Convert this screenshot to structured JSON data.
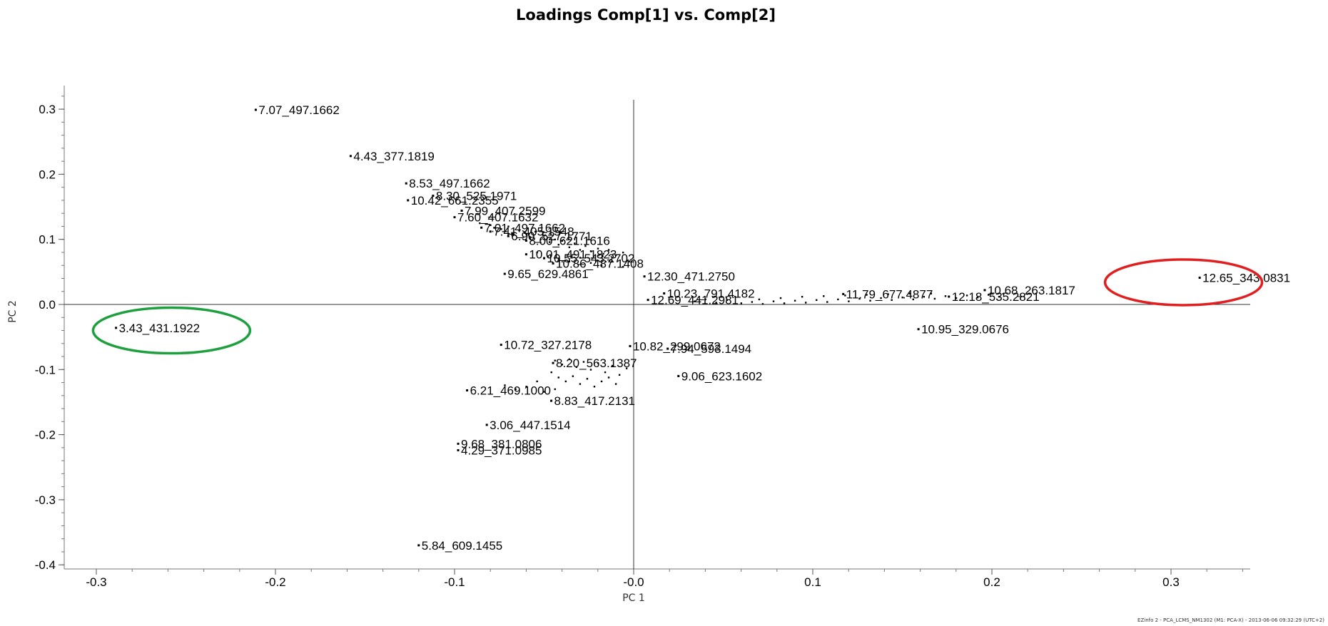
{
  "chart_data": {
    "type": "scatter",
    "title": "Loadings Comp[1] vs. Comp[2]",
    "xlabel": "PC 1",
    "ylabel": "PC 2",
    "xlim": [
      -0.32,
      0.35
    ],
    "ylim": [
      -0.4,
      0.32
    ],
    "xticks": [
      "-0.3",
      "-0.2",
      "-0.1",
      "-0.0",
      "0.1",
      "0.2",
      "0.3"
    ],
    "xtick_values": [
      -0.3,
      -0.2,
      -0.1,
      0.0,
      0.1,
      0.2,
      0.3
    ],
    "yticks": [
      "0.3",
      "0.2",
      "0.1",
      "0.0",
      "-0.1",
      "-0.2",
      "-0.3",
      "-0.4"
    ],
    "ytick_values": [
      0.3,
      0.2,
      0.1,
      0.0,
      -0.1,
      -0.2,
      -0.3,
      -0.4
    ],
    "grid": false,
    "points": [
      {
        "label": "7.07_497.1662",
        "x": -0.211,
        "y": 0.299
      },
      {
        "label": "4.43_377.1819",
        "x": -0.158,
        "y": 0.228
      },
      {
        "label": "8.53_497.1662",
        "x": -0.127,
        "y": 0.186
      },
      {
        "label": "8.30_525.1971",
        "x": -0.112,
        "y": 0.167
      },
      {
        "label": "10.42_661.2355",
        "x": -0.126,
        "y": 0.16
      },
      {
        "label": "7.99_407.2599",
        "x": -0.096,
        "y": 0.144
      },
      {
        "label": "7.60_407.1632",
        "x": -0.1,
        "y": 0.134
      },
      {
        "label": "7.01_497.1662",
        "x": -0.085,
        "y": 0.118
      },
      {
        "label": "7.41_405.1548",
        "x": -0.08,
        "y": 0.112
      },
      {
        "label": "6.90_527.1771",
        "x": -0.07,
        "y": 0.105
      },
      {
        "label": "8.00_621.1616",
        "x": -0.06,
        "y": 0.098
      },
      {
        "label": "10.01_491.1823",
        "x": -0.06,
        "y": 0.077
      },
      {
        "label": "10.55_543.2702",
        "x": -0.05,
        "y": 0.071
      },
      {
        "label": "10.86_487.1408",
        "x": -0.045,
        "y": 0.063
      },
      {
        "label": "9.65_629.4861",
        "x": -0.072,
        "y": 0.047
      },
      {
        "label": "12.30_471.2750",
        "x": 0.006,
        "y": 0.043
      },
      {
        "label": "10.23_791.4182",
        "x": 0.017,
        "y": 0.017
      },
      {
        "label": "12.69_441.2981",
        "x": 0.008,
        "y": 0.007
      },
      {
        "label": "11.79_677.4877",
        "x": 0.117,
        "y": 0.016
      },
      {
        "label": "10.68_263.1817",
        "x": 0.196,
        "y": 0.022
      },
      {
        "label": "12.18_535.2821",
        "x": 0.176,
        "y": 0.012
      },
      {
        "label": "12.65_343.0831",
        "x": 0.316,
        "y": 0.041
      },
      {
        "label": "10.95_329.0676",
        "x": 0.159,
        "y": -0.038
      },
      {
        "label": "3.43_431.1922",
        "x": -0.289,
        "y": -0.036
      },
      {
        "label": "10.72_327.2178",
        "x": -0.074,
        "y": -0.062
      },
      {
        "label": "10.82_299.0672",
        "x": -0.002,
        "y": -0.064
      },
      {
        "label": "7.94_593.1494",
        "x": 0.019,
        "y": -0.068
      },
      {
        "label": "8.20_563.1387",
        "x": -0.045,
        "y": -0.09
      },
      {
        "label": "9.06_623.1602",
        "x": 0.025,
        "y": -0.11
      },
      {
        "label": "6.21_469.1000",
        "x": -0.093,
        "y": -0.132
      },
      {
        "label": "8.83_417.2131",
        "x": -0.046,
        "y": -0.148
      },
      {
        "label": "3.06_447.1514",
        "x": -0.082,
        "y": -0.185
      },
      {
        "label": "9.68_381.0806",
        "x": -0.098,
        "y": -0.214
      },
      {
        "label": "4.29_371.0985",
        "x": -0.098,
        "y": -0.224
      },
      {
        "label": "5.84_609.1455",
        "x": -0.12,
        "y": -0.37
      }
    ],
    "cluster_points": [
      [
        -0.086,
        0.125
      ],
      [
        -0.08,
        0.122
      ],
      [
        -0.078,
        0.118
      ],
      [
        -0.074,
        0.116
      ],
      [
        -0.07,
        0.12
      ],
      [
        -0.068,
        0.11
      ],
      [
        -0.064,
        0.114
      ],
      [
        -0.06,
        0.108
      ],
      [
        -0.058,
        0.104
      ],
      [
        -0.055,
        0.112
      ],
      [
        -0.052,
        0.1
      ],
      [
        -0.05,
        0.106
      ],
      [
        -0.047,
        0.096
      ],
      [
        -0.044,
        0.1
      ],
      [
        -0.042,
        0.092
      ],
      [
        -0.04,
        0.098
      ],
      [
        -0.036,
        0.088
      ],
      [
        -0.033,
        0.094
      ],
      [
        -0.03,
        0.084
      ],
      [
        -0.027,
        0.09
      ],
      [
        -0.024,
        0.082
      ],
      [
        -0.02,
        0.086
      ],
      [
        -0.017,
        0.078
      ],
      [
        -0.014,
        0.084
      ],
      [
        -0.01,
        0.076
      ],
      [
        -0.006,
        0.08
      ],
      [
        -0.054,
        0.08
      ],
      [
        -0.048,
        0.074
      ],
      [
        -0.042,
        0.07
      ],
      [
        -0.036,
        0.066
      ],
      [
        -0.03,
        0.072
      ],
      [
        -0.024,
        0.064
      ],
      [
        -0.018,
        0.06
      ],
      [
        -0.012,
        0.066
      ],
      [
        -0.006,
        0.058
      ],
      [
        -0.044,
        -0.086
      ],
      [
        -0.04,
        -0.092
      ],
      [
        -0.036,
        -0.084
      ],
      [
        -0.032,
        -0.096
      ],
      [
        -0.028,
        -0.088
      ],
      [
        -0.024,
        -0.1
      ],
      [
        -0.02,
        -0.09
      ],
      [
        -0.016,
        -0.104
      ],
      [
        -0.012,
        -0.094
      ],
      [
        -0.008,
        -0.108
      ],
      [
        -0.004,
        -0.098
      ],
      [
        -0.046,
        -0.104
      ],
      [
        -0.042,
        -0.112
      ],
      [
        -0.038,
        -0.118
      ],
      [
        -0.034,
        -0.11
      ],
      [
        -0.03,
        -0.122
      ],
      [
        -0.026,
        -0.114
      ],
      [
        -0.022,
        -0.126
      ],
      [
        -0.018,
        -0.118
      ],
      [
        -0.014,
        -0.112
      ],
      [
        -0.01,
        -0.122
      ],
      [
        -0.054,
        -0.118
      ],
      [
        -0.06,
        -0.126
      ],
      [
        -0.066,
        -0.13
      ],
      [
        -0.072,
        -0.124
      ],
      [
        -0.05,
        -0.134
      ],
      [
        -0.044,
        -0.13
      ],
      [
        0.06,
        0.002
      ],
      [
        0.066,
        0.004
      ],
      [
        0.072,
        0.001
      ],
      [
        0.078,
        0.005
      ],
      [
        0.084,
        0.002
      ],
      [
        0.09,
        0.006
      ],
      [
        0.096,
        0.003
      ],
      [
        0.102,
        0.007
      ],
      [
        0.108,
        0.004
      ],
      [
        0.114,
        0.008
      ],
      [
        0.12,
        0.005
      ],
      [
        0.126,
        0.009
      ],
      [
        0.132,
        0.006
      ],
      [
        0.138,
        0.01
      ],
      [
        0.144,
        0.007
      ],
      [
        0.15,
        0.011
      ],
      [
        0.156,
        0.008
      ],
      [
        0.162,
        0.012
      ],
      [
        0.168,
        0.009
      ],
      [
        0.174,
        0.013
      ],
      [
        0.18,
        0.01
      ],
      [
        0.186,
        0.014
      ],
      [
        0.192,
        0.011
      ],
      [
        0.198,
        0.015
      ],
      [
        0.204,
        0.012
      ],
      [
        0.07,
        0.008
      ],
      [
        0.082,
        0.01
      ],
      [
        0.094,
        0.012
      ],
      [
        0.106,
        0.013
      ],
      [
        0.118,
        0.014
      ],
      [
        0.13,
        0.015
      ],
      [
        0.142,
        0.016
      ],
      [
        0.154,
        0.017
      ],
      [
        0.166,
        0.017
      ],
      [
        0.034,
        0.005
      ],
      [
        0.04,
        0.008
      ],
      [
        0.046,
        0.003
      ],
      [
        0.052,
        0.007
      ]
    ],
    "ellipses": [
      {
        "name": "green-highlight",
        "color": "#1fa040",
        "cx": -0.258,
        "cy": -0.04
      },
      {
        "name": "red-highlight",
        "color": "#e02020",
        "cx": 0.307,
        "cy": 0.034
      }
    ]
  },
  "footer": "EZinfo 2 - PCA_LCMS_NM1302 (M1: PCA-X) - 2013-06-06 09:32:29 (UTC+2)"
}
